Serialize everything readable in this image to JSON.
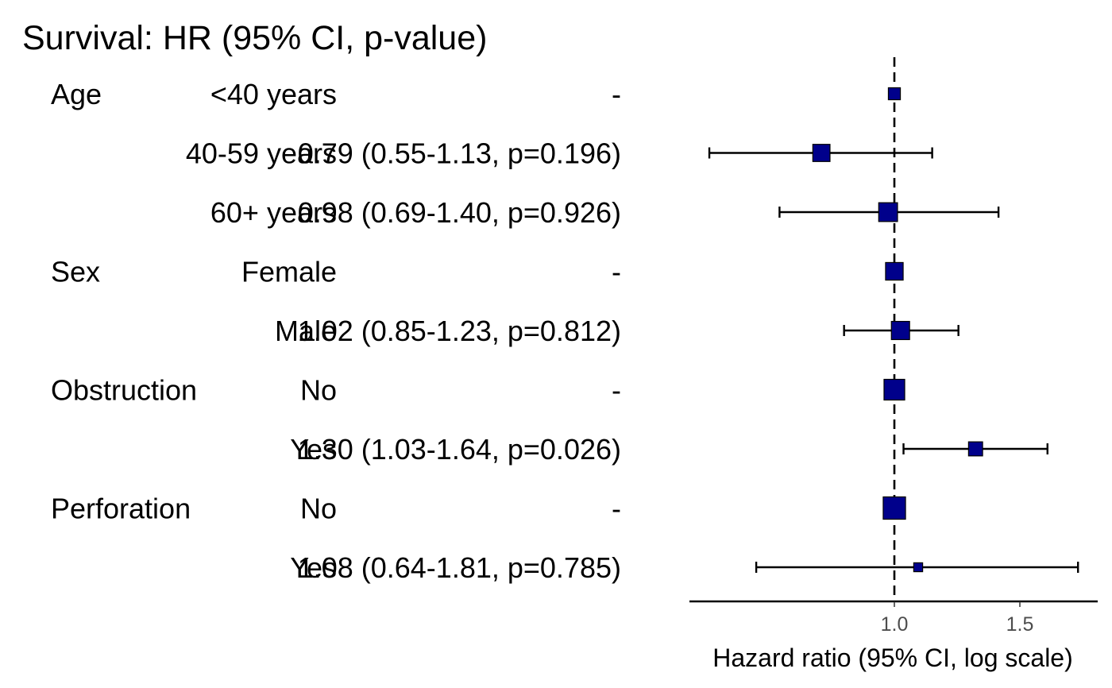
{
  "chart_data": {
    "type": "forest",
    "title": "Survival: HR (95% CI, p-value)",
    "xlabel": "Hazard ratio (95% CI, log scale)",
    "x_scale": "log",
    "xlim": [
      0.55,
      1.81
    ],
    "xticks": [
      1.0,
      1.5
    ],
    "xtick_labels": [
      "1.0",
      "1.5"
    ],
    "reference_line": 1.0,
    "marker_color": "#00008B",
    "rows": [
      {
        "variable": "Age",
        "level": "<40 years",
        "hr_text": "-",
        "hr": 1.0,
        "lower": null,
        "upper": null,
        "n_weight": 0.35
      },
      {
        "variable": "",
        "level": "40-59 years",
        "hr_text": "0.79 (0.55-1.13, p=0.196)",
        "hr": 0.79,
        "lower": 0.55,
        "upper": 1.13,
        "n_weight": 0.6
      },
      {
        "variable": "",
        "level": "60+ years",
        "hr_text": "0.98 (0.69-1.40, p=0.926)",
        "hr": 0.98,
        "lower": 0.69,
        "upper": 1.4,
        "n_weight": 0.68
      },
      {
        "variable": "Sex",
        "level": "Female",
        "hr_text": "-",
        "hr": 1.0,
        "lower": null,
        "upper": null,
        "n_weight": 0.62
      },
      {
        "variable": "",
        "level": "Male",
        "hr_text": "1.02 (0.85-1.23, p=0.812)",
        "hr": 1.02,
        "lower": 0.85,
        "upper": 1.23,
        "n_weight": 0.65
      },
      {
        "variable": "Obstruction",
        "level": "No",
        "hr_text": "-",
        "hr": 1.0,
        "lower": null,
        "upper": null,
        "n_weight": 0.77
      },
      {
        "variable": "",
        "level": "Yes",
        "hr_text": "1.30 (1.03-1.64, p=0.026)",
        "hr": 1.3,
        "lower": 1.03,
        "upper": 1.64,
        "n_weight": 0.45
      },
      {
        "variable": "Perforation",
        "level": "No",
        "hr_text": "-",
        "hr": 1.0,
        "lower": null,
        "upper": null,
        "n_weight": 0.85
      },
      {
        "variable": "",
        "level": "Yes",
        "hr_text": "1.08 (0.64-1.81, p=0.785)",
        "hr": 1.08,
        "lower": 0.64,
        "upper": 1.81,
        "n_weight": 0.2
      }
    ]
  }
}
